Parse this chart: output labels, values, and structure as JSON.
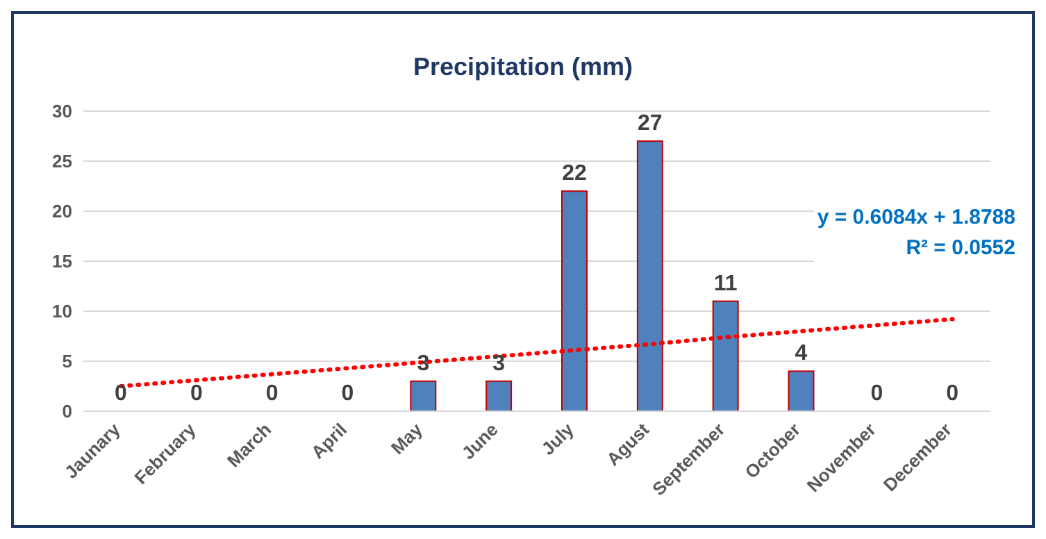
{
  "chart_data": {
    "type": "bar",
    "title": "Precipitation (mm)",
    "categories": [
      "Jaunary",
      "February",
      "March",
      "April",
      "May",
      "June",
      "July",
      "Agust",
      "September",
      "October",
      "November",
      "December"
    ],
    "series": [
      {
        "color": "#4f81bd",
        "values": [
          0,
          0,
          0,
          0,
          3,
          3,
          22,
          27,
          11,
          4,
          0,
          0
        ],
        "value_labels": [
          "0",
          "0",
          "0",
          "0",
          "3",
          "3",
          "22",
          "27",
          "11",
          "4",
          "0",
          "0"
        ]
      },
      {
        "type": "line",
        "color": "#ff0000",
        "line_style": "dotted",
        "marker": "none",
        "values": [
          2.5,
          3.1,
          3.7,
          4.3,
          4.9,
          5.5,
          6.1,
          6.7,
          7.4,
          8.0,
          8.6,
          9.2
        ]
      }
    ],
    "ylim": [
      0,
      30
    ],
    "yticks": [
      0,
      5,
      10,
      15,
      20,
      25,
      30
    ],
    "grid": "y",
    "annotations": [
      "y = 0.6084x + 1.8788",
      "R² = 0.0552"
    ]
  }
}
